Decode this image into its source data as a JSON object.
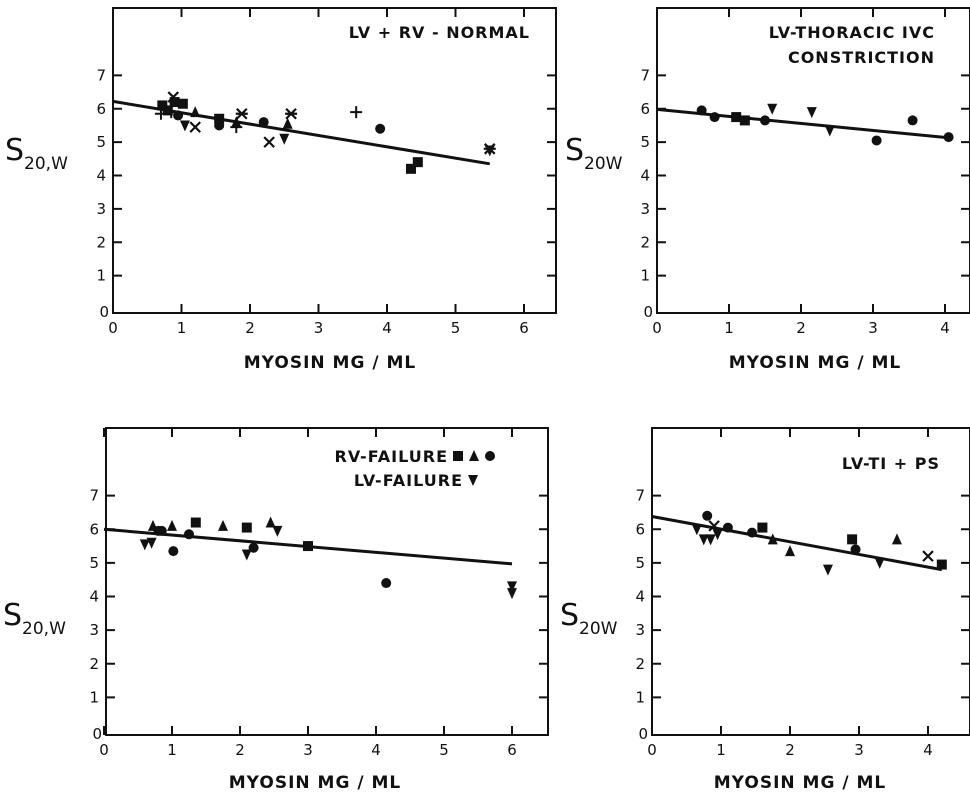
{
  "chart_data": [
    {
      "type": "scatter",
      "title": [
        "LV + RV - NORMAL"
      ],
      "xlabel": "MYOSIN  MG / ML",
      "ylabel": {
        "main": "S",
        "sub": "20,W"
      },
      "xlim": [
        0,
        6.5
      ],
      "ylim": [
        0,
        8
      ],
      "xticks": [
        0,
        1,
        2,
        3,
        4,
        5,
        6
      ],
      "yticks": [
        1,
        2,
        3,
        4,
        5,
        6,
        7
      ],
      "grid": false,
      "fit_line": {
        "x": [
          0,
          5.5
        ],
        "y": [
          6.22,
          4.35
        ]
      },
      "points": [
        {
          "x": 0.72,
          "y": 6.1,
          "m": "square"
        },
        {
          "x": 0.8,
          "y": 5.95,
          "m": "square"
        },
        {
          "x": 0.9,
          "y": 6.2,
          "m": "square"
        },
        {
          "x": 1.02,
          "y": 6.15,
          "m": "square"
        },
        {
          "x": 1.55,
          "y": 5.7,
          "m": "square"
        },
        {
          "x": 4.35,
          "y": 4.2,
          "m": "square"
        },
        {
          "x": 4.45,
          "y": 4.4,
          "m": "square"
        },
        {
          "x": 0.7,
          "y": 5.85,
          "m": "plus"
        },
        {
          "x": 0.85,
          "y": 5.9,
          "m": "plus"
        },
        {
          "x": 1.8,
          "y": 5.45,
          "m": "plus"
        },
        {
          "x": 3.55,
          "y": 5.9,
          "m": "plus"
        },
        {
          "x": 0.88,
          "y": 6.35,
          "m": "cross"
        },
        {
          "x": 1.2,
          "y": 5.45,
          "m": "cross"
        },
        {
          "x": 2.28,
          "y": 5.0,
          "m": "cross"
        },
        {
          "x": 1.88,
          "y": 5.85,
          "m": "star"
        },
        {
          "x": 2.6,
          "y": 5.85,
          "m": "star"
        },
        {
          "x": 5.5,
          "y": 4.8,
          "m": "star"
        },
        {
          "x": 0.95,
          "y": 5.8,
          "m": "circle"
        },
        {
          "x": 1.55,
          "y": 5.5,
          "m": "circle"
        },
        {
          "x": 2.2,
          "y": 5.6,
          "m": "circle"
        },
        {
          "x": 3.9,
          "y": 5.4,
          "m": "circle"
        },
        {
          "x": 1.05,
          "y": 5.5,
          "m": "tri-down"
        },
        {
          "x": 2.5,
          "y": 5.1,
          "m": "tri-down"
        },
        {
          "x": 5.5,
          "y": 4.75,
          "m": "tri-down"
        },
        {
          "x": 1.2,
          "y": 5.9,
          "m": "tri-up"
        },
        {
          "x": 2.55,
          "y": 5.55,
          "m": "tri-up"
        },
        {
          "x": 1.8,
          "y": 5.6,
          "m": "tri-up"
        }
      ]
    },
    {
      "type": "scatter",
      "title": [
        "LV-THORACIC  IVC",
        "CONSTRICTION"
      ],
      "xlabel": "MYOSIN   MG / ML",
      "ylabel": {
        "main": "S",
        "sub": "20W"
      },
      "xlim": [
        0,
        4.5
      ],
      "ylim": [
        0,
        8
      ],
      "xticks": [
        0,
        1,
        2,
        3,
        4
      ],
      "yticks": [
        1,
        2,
        3,
        4,
        5,
        6,
        7
      ],
      "grid": false,
      "fit_line": {
        "x": [
          0,
          4.05
        ],
        "y": [
          5.98,
          5.13
        ]
      },
      "points": [
        {
          "x": 0.62,
          "y": 5.95,
          "m": "circle"
        },
        {
          "x": 0.8,
          "y": 5.75,
          "m": "circle"
        },
        {
          "x": 1.1,
          "y": 5.75,
          "m": "square"
        },
        {
          "x": 1.22,
          "y": 5.65,
          "m": "square"
        },
        {
          "x": 1.5,
          "y": 5.65,
          "m": "circle"
        },
        {
          "x": 1.6,
          "y": 6.0,
          "m": "tri-down"
        },
        {
          "x": 2.15,
          "y": 5.9,
          "m": "tri-down"
        },
        {
          "x": 2.4,
          "y": 5.35,
          "m": "tri-down"
        },
        {
          "x": 3.05,
          "y": 5.05,
          "m": "circle"
        },
        {
          "x": 3.55,
          "y": 5.65,
          "m": "circle"
        },
        {
          "x": 4.05,
          "y": 5.15,
          "m": "circle"
        }
      ]
    },
    {
      "type": "scatter",
      "title": [
        "RV-FAILURE",
        "LV-FAILURE"
      ],
      "legend": [
        {
          "label": "RV-FAILURE",
          "markers": [
            "square",
            "tri-up",
            "circle"
          ]
        },
        {
          "label": "LV-FAILURE",
          "markers": [
            "tri-down"
          ]
        }
      ],
      "xlabel": "MYOSIN  MG  /  ML",
      "ylabel": {
        "main": "S",
        "sub": "20,W"
      },
      "xlim": [
        0,
        6.5
      ],
      "ylim": [
        0,
        8
      ],
      "xticks": [
        0,
        1,
        2,
        3,
        4,
        5,
        6
      ],
      "yticks": [
        1,
        2,
        3,
        4,
        5,
        6,
        7
      ],
      "grid": false,
      "fit_line": {
        "x": [
          0,
          6.0
        ],
        "y": [
          6.0,
          4.97
        ]
      },
      "points": [
        {
          "x": 0.6,
          "y": 5.55,
          "m": "tri-down"
        },
        {
          "x": 0.7,
          "y": 5.6,
          "m": "tri-down"
        },
        {
          "x": 0.72,
          "y": 6.1,
          "m": "tri-up"
        },
        {
          "x": 0.8,
          "y": 5.95,
          "m": "circle"
        },
        {
          "x": 0.85,
          "y": 5.95,
          "m": "circle"
        },
        {
          "x": 1.0,
          "y": 6.1,
          "m": "tri-up"
        },
        {
          "x": 1.02,
          "y": 5.35,
          "m": "circle"
        },
        {
          "x": 1.25,
          "y": 5.85,
          "m": "circle"
        },
        {
          "x": 1.35,
          "y": 6.2,
          "m": "square"
        },
        {
          "x": 1.75,
          "y": 6.1,
          "m": "tri-up"
        },
        {
          "x": 2.1,
          "y": 6.05,
          "m": "square"
        },
        {
          "x": 2.1,
          "y": 5.25,
          "m": "tri-down"
        },
        {
          "x": 2.2,
          "y": 5.45,
          "m": "circle"
        },
        {
          "x": 2.45,
          "y": 6.2,
          "m": "tri-up"
        },
        {
          "x": 2.55,
          "y": 5.95,
          "m": "tri-down"
        },
        {
          "x": 3.0,
          "y": 5.5,
          "m": "square"
        },
        {
          "x": 4.15,
          "y": 4.4,
          "m": "circle"
        },
        {
          "x": 6.0,
          "y": 4.3,
          "m": "tri-down"
        },
        {
          "x": 6.0,
          "y": 4.1,
          "m": "tri-down"
        }
      ]
    },
    {
      "type": "scatter",
      "title": [
        "LV-TI + PS"
      ],
      "xlabel": "MYOSIN   MG / ML",
      "ylabel": {
        "main": "S",
        "sub": "20W"
      },
      "xlim": [
        0,
        4.5
      ],
      "ylim": [
        0,
        8
      ],
      "xticks": [
        0,
        1,
        2,
        3,
        4
      ],
      "yticks": [
        1,
        2,
        3,
        4,
        5,
        6,
        7
      ],
      "grid": false,
      "fit_line": {
        "x": [
          0,
          4.2
        ],
        "y": [
          6.38,
          4.8
        ]
      },
      "points": [
        {
          "x": 0.65,
          "y": 6.0,
          "m": "tri-down"
        },
        {
          "x": 0.75,
          "y": 5.7,
          "m": "tri-down"
        },
        {
          "x": 0.8,
          "y": 6.4,
          "m": "circle"
        },
        {
          "x": 0.85,
          "y": 5.7,
          "m": "tri-down"
        },
        {
          "x": 0.9,
          "y": 6.1,
          "m": "cross"
        },
        {
          "x": 0.95,
          "y": 5.85,
          "m": "tri-down"
        },
        {
          "x": 1.1,
          "y": 6.05,
          "m": "circle"
        },
        {
          "x": 1.45,
          "y": 5.9,
          "m": "circle"
        },
        {
          "x": 1.6,
          "y": 6.05,
          "m": "square"
        },
        {
          "x": 1.75,
          "y": 5.7,
          "m": "tri-up"
        },
        {
          "x": 2.0,
          "y": 5.35,
          "m": "tri-up"
        },
        {
          "x": 2.55,
          "y": 4.8,
          "m": "tri-down"
        },
        {
          "x": 2.9,
          "y": 5.7,
          "m": "square"
        },
        {
          "x": 2.95,
          "y": 5.4,
          "m": "circle"
        },
        {
          "x": 3.3,
          "y": 5.0,
          "m": "tri-down"
        },
        {
          "x": 3.55,
          "y": 5.7,
          "m": "tri-up"
        },
        {
          "x": 4.0,
          "y": 5.2,
          "m": "cross"
        },
        {
          "x": 4.2,
          "y": 4.95,
          "m": "square"
        }
      ]
    }
  ]
}
